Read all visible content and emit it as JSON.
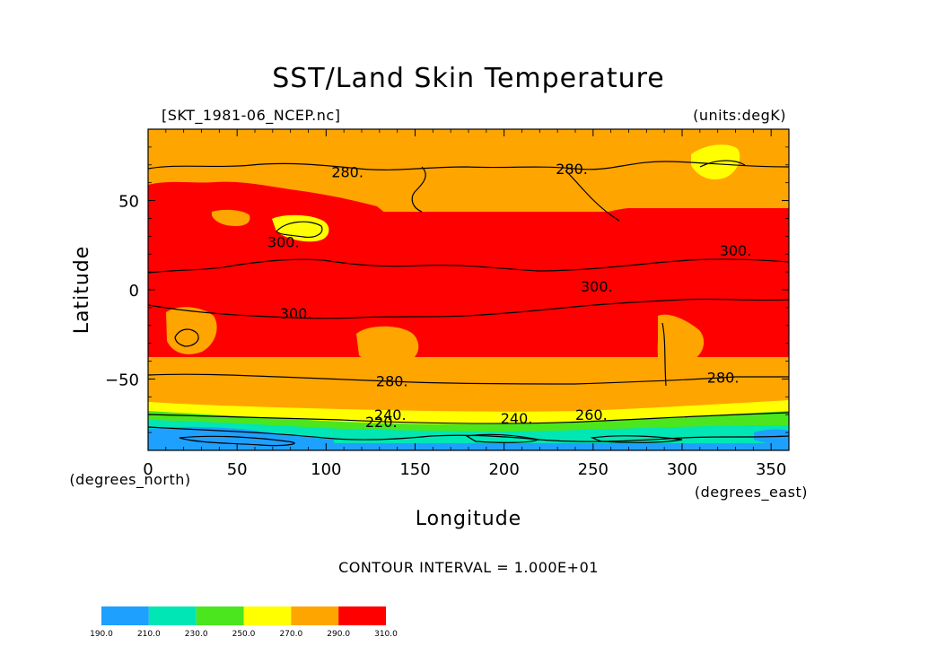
{
  "chart_data": {
    "type": "heatmap",
    "title": "SST/Land Skin Temperature",
    "file_label": "[SKT_1981-06_NCEP.nc]",
    "units_label": "(units:degK)",
    "xlabel": "Longitude",
    "ylabel": "Latitude",
    "x_unit_label": "(degrees_east)",
    "y_unit_label": "(degrees_north)",
    "xlim": [
      0,
      360
    ],
    "ylim": [
      -90,
      90
    ],
    "x_ticks": [
      0,
      50,
      100,
      150,
      200,
      250,
      300,
      350
    ],
    "y_ticks": [
      -50,
      0,
      50
    ],
    "contour_interval_text": "CONTOUR INTERVAL = 1.000E+01",
    "contour_interval": 10,
    "colorbar": {
      "levels": [
        "190.0",
        "210.0",
        "230.0",
        "250.0",
        "270.0",
        "290.0",
        "310.0"
      ],
      "colors": [
        "#1ea0ff",
        "#00e6b4",
        "#4be61e",
        "#ffff00",
        "#ffa500",
        "#ff0000"
      ]
    },
    "contour_labels": [
      {
        "text": "280.",
        "lon": 112,
        "lat": 66
      },
      {
        "text": "280.",
        "lon": 238,
        "lat": 68
      },
      {
        "text": "300.",
        "lon": 76,
        "lat": 27
      },
      {
        "text": "300.",
        "lon": 330,
        "lat": 22
      },
      {
        "text": "300.",
        "lon": 252,
        "lat": 2
      },
      {
        "text": "300.",
        "lon": 83,
        "lat": -13
      },
      {
        "text": "280.",
        "lon": 137,
        "lat": -51
      },
      {
        "text": "280.",
        "lon": 323,
        "lat": -49
      },
      {
        "text": "240.",
        "lon": 136,
        "lat": -70
      },
      {
        "text": "220.",
        "lon": 131,
        "lat": -74
      },
      {
        "text": "240.",
        "lon": 207,
        "lat": -72
      },
      {
        "text": "260.",
        "lon": 249,
        "lat": -70
      }
    ]
  }
}
